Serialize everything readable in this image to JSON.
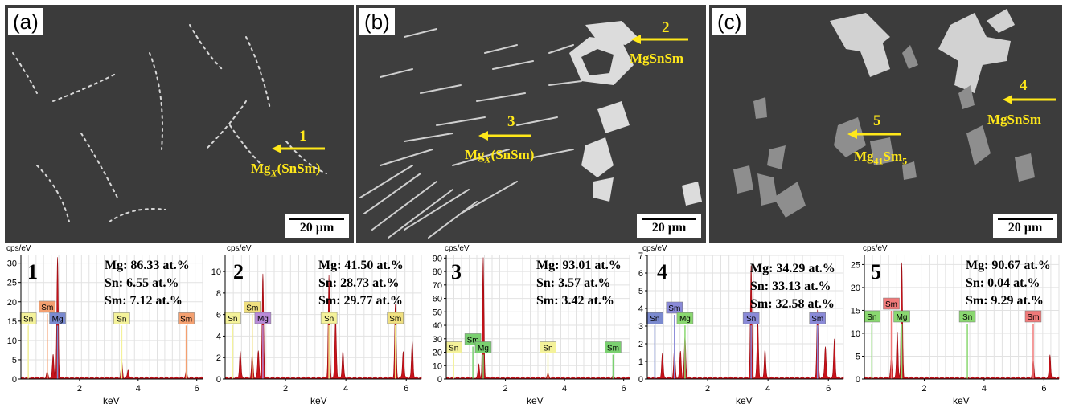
{
  "panels": [
    {
      "label": "(a)",
      "scale": "20 µm",
      "markers": [
        {
          "number": "1",
          "phase": "Mg",
          "sub": "X",
          "rest": "(SnSm)"
        }
      ]
    },
    {
      "label": "(b)",
      "scale": "20 µm",
      "markers": [
        {
          "number": "2",
          "phase": "MgSnSm",
          "sub": "",
          "rest": ""
        },
        {
          "number": "3",
          "phase": "Mg",
          "sub": "X",
          "rest": "(SnSm)"
        }
      ]
    },
    {
      "label": "(c)",
      "scale": "20 µm",
      "markers": [
        {
          "number": "4",
          "phase": "MgSnSm",
          "sub": "",
          "rest": ""
        },
        {
          "number": "5",
          "phase": "Mg",
          "sub": "41",
          "rest": "Sm",
          "sub2": "5"
        }
      ]
    }
  ],
  "colors": {
    "arrow": "#ffe81a",
    "spectrum_fill": "#c8121a",
    "sn_tag": "#f4f29a",
    "sm_tag_a": "#f4a070",
    "mg_tag_a": "#7a8ad0",
    "sm_tag_b": "#f0e080",
    "mg_tag_b": "#b88ad8",
    "sm_tag_c": "#7ad070",
    "mg_tag_c": "#7ad070",
    "sm_tag_d": "#8a8ad8",
    "mg_tag_d": "#8ad870",
    "sm_tag_e": "#f07a7a",
    "mg_tag_e": "#8ad870"
  },
  "chart_data": [
    {
      "type": "area",
      "number": "1",
      "ylabel": "cps/eV",
      "xlabel": "keV",
      "ylim": [
        0,
        32
      ],
      "yticks": [
        0,
        5,
        10,
        15,
        20,
        25,
        30
      ],
      "xlim": [
        0,
        6.2
      ],
      "xticks": [
        2,
        4,
        6
      ],
      "composition": [
        "Mg: 86.33 at.%",
        "Sn: 6.55 at.%",
        "Sm: 7.12 at.%"
      ],
      "peaks": [
        [
          1.25,
          31
        ],
        [
          1.1,
          6
        ],
        [
          3.44,
          4
        ],
        [
          5.64,
          1.5
        ],
        [
          0.9,
          1.5
        ],
        [
          3.66,
          2
        ]
      ],
      "tags": [
        {
          "el": "Sn",
          "x": 0.25,
          "y": 15.5,
          "c": "sn_tag"
        },
        {
          "el": "Sm",
          "x": 0.9,
          "y": 18.5,
          "c": "sm_tag_a"
        },
        {
          "el": "Mg",
          "x": 1.25,
          "y": 15.5,
          "c": "mg_tag_a"
        },
        {
          "el": "Sn",
          "x": 3.44,
          "y": 15.5,
          "c": "sn_tag"
        },
        {
          "el": "Sm",
          "x": 5.64,
          "y": 15.5,
          "c": "sm_tag_a"
        }
      ]
    },
    {
      "type": "area",
      "number": "2",
      "ylabel": "cps/eV",
      "xlabel": "keV",
      "ylim": [
        0,
        11.5
      ],
      "yticks": [
        0,
        2,
        4,
        6,
        8,
        10
      ],
      "xlim": [
        0,
        6.5
      ],
      "xticks": [
        2,
        4,
        6
      ],
      "composition": [
        "Mg: 41.50 at.%",
        "Sn: 28.73 at.%",
        "Sm: 29.77 at.%"
      ],
      "peaks": [
        [
          1.25,
          9.6
        ],
        [
          1.1,
          2.5
        ],
        [
          0.9,
          2.2
        ],
        [
          3.44,
          9.5
        ],
        [
          3.66,
          5.5
        ],
        [
          3.9,
          2.5
        ],
        [
          5.64,
          6.8
        ],
        [
          5.9,
          2.5
        ],
        [
          6.2,
          3.4
        ],
        [
          0.5,
          2.5
        ]
      ],
      "tags": [
        {
          "el": "Sn",
          "x": 0.25,
          "y": 5.6,
          "c": "sn_tag"
        },
        {
          "el": "Sm",
          "x": 0.9,
          "y": 6.6,
          "c": "sm_tag_b"
        },
        {
          "el": "Mg",
          "x": 1.25,
          "y": 5.6,
          "c": "mg_tag_b"
        },
        {
          "el": "Sn",
          "x": 3.44,
          "y": 5.6,
          "c": "sn_tag"
        },
        {
          "el": "Sm",
          "x": 5.64,
          "y": 5.6,
          "c": "sm_tag_b"
        }
      ]
    },
    {
      "type": "area",
      "number": "3",
      "ylabel": "cps/eV",
      "xlabel": "keV",
      "ylim": [
        0,
        92
      ],
      "yticks": [
        0,
        10,
        20,
        30,
        40,
        50,
        60,
        70,
        80,
        90
      ],
      "xlim": [
        0,
        6.2
      ],
      "xticks": [
        2,
        4,
        6
      ],
      "composition": [
        "Mg: 93.01 at.%",
        "Sn: 3.57 at.%",
        "Sm: 3.42 at.%"
      ],
      "peaks": [
        [
          1.25,
          89
        ],
        [
          1.1,
          10
        ],
        [
          3.44,
          3
        ],
        [
          5.64,
          1
        ]
      ],
      "tags": [
        {
          "el": "Sn",
          "x": 0.25,
          "y": 23,
          "c": "sn_tag"
        },
        {
          "el": "Sm",
          "x": 0.9,
          "y": 29,
          "c": "sm_tag_c"
        },
        {
          "el": "Mg",
          "x": 1.25,
          "y": 23,
          "c": "mg_tag_c"
        },
        {
          "el": "Sn",
          "x": 3.44,
          "y": 23,
          "c": "sn_tag"
        },
        {
          "el": "Sm",
          "x": 5.64,
          "y": 23,
          "c": "sm_tag_c"
        }
      ]
    },
    {
      "type": "area",
      "number": "4",
      "ylabel": "cps/eV",
      "xlabel": "keV",
      "ylim": [
        0,
        7
      ],
      "yticks": [
        0,
        1,
        2,
        3,
        4,
        5,
        6,
        7
      ],
      "xlim": [
        0,
        6.5
      ],
      "xticks": [
        2,
        4,
        6
      ],
      "composition": [
        "Mg: 34.29 at.%",
        "Sn: 33.13 at.%",
        "Sm: 32.58 at.%"
      ],
      "peaks": [
        [
          1.25,
          2.3
        ],
        [
          1.1,
          1.5
        ],
        [
          0.9,
          1.6
        ],
        [
          3.44,
          6.3
        ],
        [
          3.66,
          3.2
        ],
        [
          3.9,
          1.6
        ],
        [
          5.64,
          3.8
        ],
        [
          5.9,
          1.8
        ],
        [
          6.2,
          2.2
        ],
        [
          0.5,
          1.4
        ]
      ],
      "tags": [
        {
          "el": "Sn",
          "x": 0.25,
          "y": 3.4,
          "c": "mg_tag_a"
        },
        {
          "el": "Sm",
          "x": 0.9,
          "y": 4.0,
          "c": "sm_tag_d"
        },
        {
          "el": "Mg",
          "x": 1.25,
          "y": 3.4,
          "c": "mg_tag_d"
        },
        {
          "el": "Sn",
          "x": 3.44,
          "y": 3.4,
          "c": "sm_tag_d"
        },
        {
          "el": "Sm",
          "x": 5.64,
          "y": 3.4,
          "c": "sm_tag_d"
        }
      ]
    },
    {
      "type": "area",
      "number": "5",
      "ylabel": "cps/eV",
      "xlabel": "keV",
      "ylim": [
        0,
        27
      ],
      "yticks": [
        0,
        5,
        10,
        15,
        20,
        25
      ],
      "xlim": [
        0,
        6.5
      ],
      "xticks": [
        2,
        4,
        6
      ],
      "composition": [
        "Mg: 90.67 at.%",
        "Sn: 0.04 at.%",
        "Sm: 9.29 at.%"
      ],
      "peaks": [
        [
          1.25,
          25
        ],
        [
          1.1,
          10
        ],
        [
          0.9,
          4
        ],
        [
          5.64,
          3.6
        ],
        [
          6.2,
          5
        ]
      ],
      "tags": [
        {
          "el": "Sn",
          "x": 0.25,
          "y": 13.5,
          "c": "mg_tag_e"
        },
        {
          "el": "Sm",
          "x": 0.9,
          "y": 16.3,
          "c": "sm_tag_e"
        },
        {
          "el": "Mg",
          "x": 1.25,
          "y": 13.5,
          "c": "mg_tag_e"
        },
        {
          "el": "Sn",
          "x": 3.44,
          "y": 13.5,
          "c": "mg_tag_e"
        },
        {
          "el": "Sm",
          "x": 5.64,
          "y": 13.5,
          "c": "sm_tag_e"
        }
      ]
    }
  ]
}
